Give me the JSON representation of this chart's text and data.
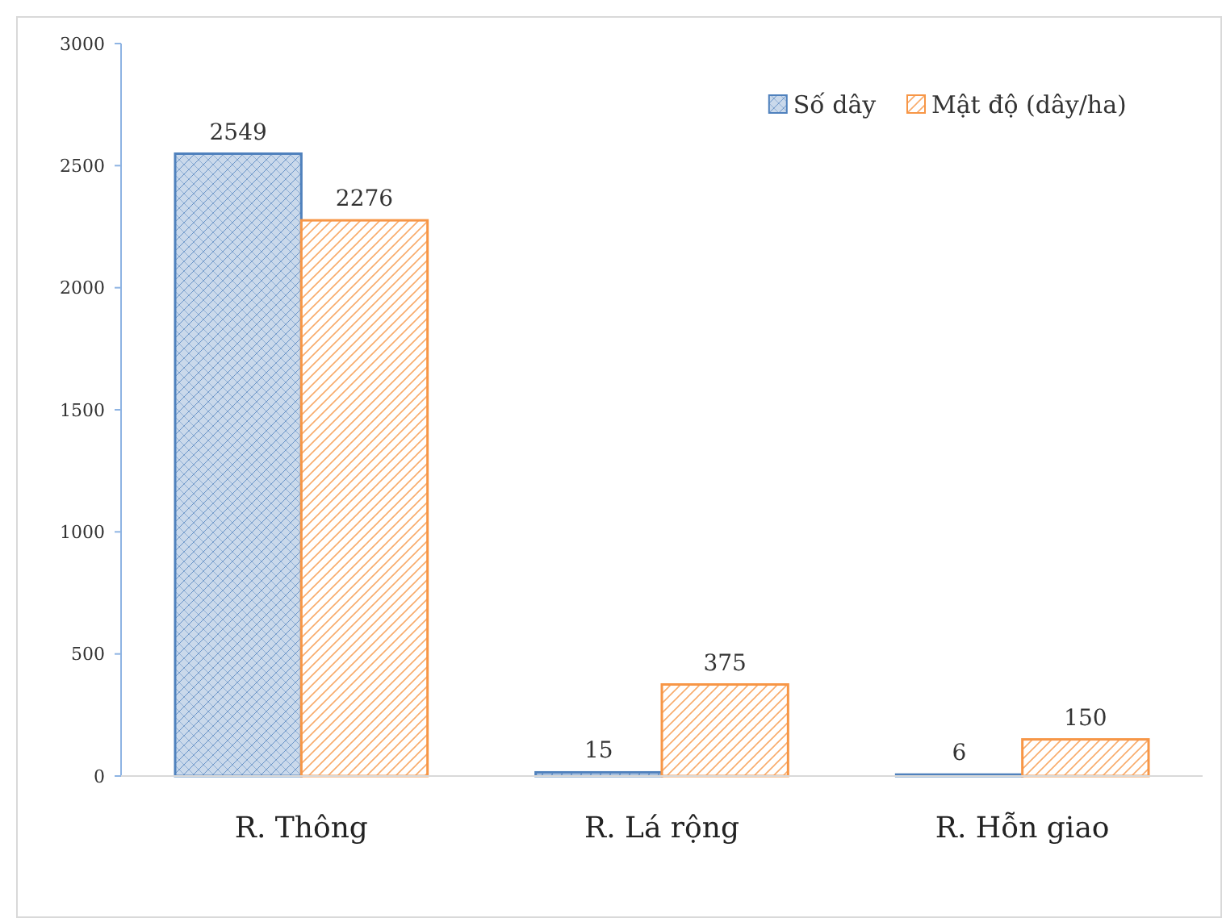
{
  "chart_data": {
    "type": "bar",
    "categories": [
      "R. Thông",
      "R. Lá rộng",
      "R. Hỗn giao"
    ],
    "series": [
      {
        "name": "Số dây",
        "color": "#4f81bd",
        "values": [
          2549,
          15,
          6
        ]
      },
      {
        "name": "Mật độ (dây/ha)",
        "color": "#f79646",
        "values": [
          2276,
          375,
          150
        ]
      }
    ],
    "ylim": [
      0,
      3000
    ],
    "yticks": [
      0,
      500,
      1000,
      1500,
      2000,
      2500,
      3000
    ],
    "data_labels": true,
    "legend": "top right",
    "grid": false
  }
}
